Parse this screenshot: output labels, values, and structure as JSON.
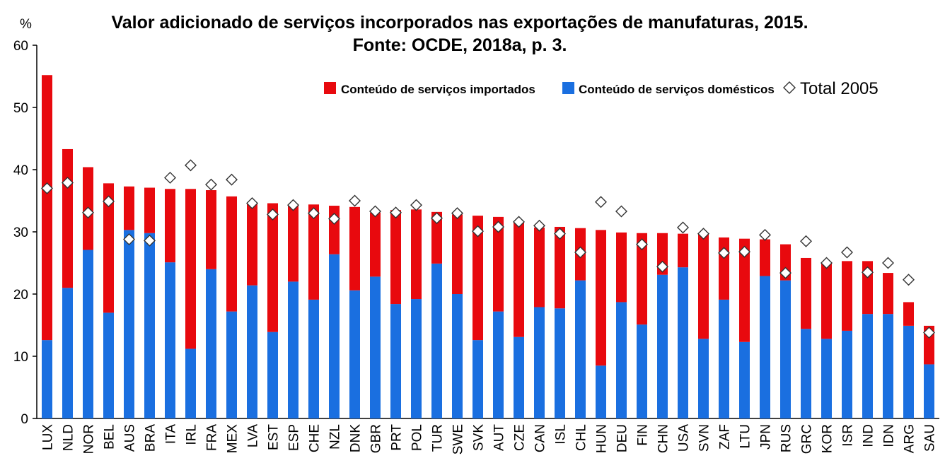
{
  "chart_data": {
    "type": "bar",
    "stacked": true,
    "title": "Valor adicionado de serviços incorporados nas exportações de manufaturas, 2015.",
    "subtitle": "Fonte: OCDE, 2018a, p. 3.",
    "ylabel": "%",
    "xlabel": "",
    "ylim": [
      0,
      60
    ],
    "yticks": [
      "0",
      "10",
      "20",
      "30",
      "40",
      "50",
      "60"
    ],
    "grid": false,
    "legend_position": "top-right",
    "colors": {
      "imported": "#e8090e",
      "domestic": "#1a6fe0",
      "marker_fill": "#ffffff",
      "marker_stroke": "#333333"
    },
    "categories": [
      "LUX",
      "NLD",
      "NOR",
      "BEL",
      "AUS",
      "BRA",
      "ITA",
      "IRL",
      "FRA",
      "MEX",
      "LVA",
      "EST",
      "ESP",
      "CHE",
      "NZL",
      "DNK",
      "GBR",
      "PRT",
      "POL",
      "TUR",
      "SWE",
      "SVK",
      "AUT",
      "CZE",
      "CAN",
      "ISL",
      "CHL",
      "HUN",
      "DEU",
      "FIN",
      "CHN",
      "USA",
      "SVN",
      "ZAF",
      "LTU",
      "JPN",
      "RUS",
      "GRC",
      "KOR",
      "ISR",
      "IND",
      "IDN",
      "ARG",
      "SAU"
    ],
    "series": [
      {
        "name": "Conteúdo de serviços domésticos",
        "kind": "bar",
        "values": [
          12.6,
          21.0,
          27.1,
          17.0,
          30.3,
          29.8,
          25.1,
          11.2,
          24.0,
          17.2,
          21.4,
          13.9,
          22.0,
          19.1,
          26.4,
          20.6,
          22.8,
          18.4,
          19.2,
          24.9,
          20.0,
          12.6,
          17.2,
          13.1,
          17.9,
          17.7,
          22.2,
          8.5,
          18.7,
          15.1,
          23.1,
          24.3,
          12.8,
          19.1,
          12.3,
          22.9,
          22.2,
          14.4,
          12.8,
          14.1,
          16.8,
          16.8,
          14.9,
          8.7
        ]
      },
      {
        "name": "Conteúdo de serviços importados",
        "kind": "bar",
        "values": [
          42.6,
          22.3,
          13.3,
          20.8,
          7.0,
          7.3,
          11.8,
          25.7,
          12.7,
          18.5,
          13.1,
          20.7,
          12.3,
          15.3,
          7.8,
          13.4,
          10.3,
          15.1,
          14.4,
          8.3,
          12.8,
          20.0,
          15.2,
          18.6,
          12.8,
          13.1,
          8.4,
          21.8,
          11.2,
          14.7,
          6.7,
          5.4,
          16.9,
          10.0,
          16.6,
          5.9,
          5.8,
          11.4,
          12.3,
          11.2,
          8.5,
          6.6,
          3.8,
          6.2
        ]
      },
      {
        "name": "Total 2005",
        "kind": "marker",
        "values": [
          37.0,
          37.9,
          33.1,
          34.9,
          28.8,
          28.6,
          38.7,
          40.7,
          37.6,
          38.4,
          34.6,
          32.8,
          34.3,
          33.0,
          32.1,
          35.0,
          33.3,
          33.1,
          34.3,
          32.2,
          33.0,
          30.1,
          30.8,
          31.6,
          31.0,
          29.7,
          26.7,
          34.8,
          33.3,
          28.0,
          24.4,
          30.7,
          29.7,
          26.6,
          26.8,
          29.5,
          23.4,
          28.5,
          25.0,
          26.7,
          23.5,
          25.0,
          22.3,
          13.8
        ]
      }
    ]
  }
}
